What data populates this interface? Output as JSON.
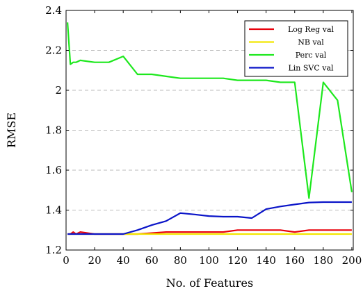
{
  "chart_data": {
    "type": "line",
    "title": "",
    "xlabel": "No. of Features",
    "ylabel": "RMSE",
    "xlim": [
      0,
      201
    ],
    "ylim": [
      1.2,
      2.4
    ],
    "xticks": [
      0,
      20,
      40,
      60,
      80,
      100,
      120,
      140,
      160,
      180,
      200
    ],
    "yticks": [
      1.2,
      1.4,
      1.6,
      1.8,
      2.0,
      2.2,
      2.4
    ],
    "xtick_labels": [
      "0",
      "20",
      "40",
      "60",
      "80",
      "100",
      "120",
      "140",
      "160",
      "180",
      "200"
    ],
    "ytick_labels": [
      "1.2",
      "1.4",
      "1.6",
      "1.8",
      "2",
      "2.2",
      "2.4"
    ],
    "grid": "horizontal-dashed",
    "legend": "top-right",
    "series": [
      {
        "name": "Log Reg val",
        "color": "#e8000b",
        "x": [
          1,
          3,
          5,
          7,
          10,
          20,
          30,
          40,
          50,
          60,
          70,
          80,
          90,
          100,
          110,
          120,
          130,
          140,
          150,
          160,
          170,
          180,
          190,
          200
        ],
        "y": [
          1.28,
          1.28,
          1.29,
          1.28,
          1.29,
          1.28,
          1.28,
          1.28,
          1.28,
          1.285,
          1.29,
          1.29,
          1.29,
          1.29,
          1.29,
          1.3,
          1.3,
          1.3,
          1.3,
          1.29,
          1.3,
          1.3,
          1.3,
          1.3
        ]
      },
      {
        "name": "NB val",
        "color": "#f2e600",
        "x": [
          1,
          10,
          20,
          40,
          60,
          80,
          100,
          120,
          140,
          160,
          180,
          200
        ],
        "y": [
          1.28,
          1.28,
          1.28,
          1.28,
          1.28,
          1.28,
          1.28,
          1.28,
          1.28,
          1.28,
          1.28,
          1.28
        ]
      },
      {
        "name": "Perc val",
        "color": "#1de81d",
        "x": [
          1,
          3,
          5,
          7,
          10,
          20,
          30,
          40,
          50,
          60,
          70,
          80,
          90,
          100,
          110,
          120,
          130,
          140,
          150,
          160,
          170,
          180,
          190,
          200
        ],
        "y": [
          2.34,
          2.13,
          2.14,
          2.14,
          2.15,
          2.14,
          2.14,
          2.17,
          2.08,
          2.08,
          2.07,
          2.06,
          2.06,
          2.06,
          2.06,
          2.05,
          2.05,
          2.05,
          2.04,
          2.04,
          1.46,
          2.04,
          1.95,
          1.49
        ]
      },
      {
        "name": "Lin SVC val",
        "color": "#0a14c8",
        "x": [
          1,
          10,
          20,
          30,
          40,
          50,
          60,
          70,
          80,
          90,
          100,
          110,
          120,
          130,
          140,
          150,
          160,
          170,
          180,
          190,
          200
        ],
        "y": [
          1.28,
          1.28,
          1.28,
          1.28,
          1.28,
          1.3,
          1.325,
          1.345,
          1.385,
          1.378,
          1.37,
          1.367,
          1.367,
          1.36,
          1.405,
          1.418,
          1.428,
          1.438,
          1.44,
          1.44,
          1.44
        ]
      }
    ]
  }
}
